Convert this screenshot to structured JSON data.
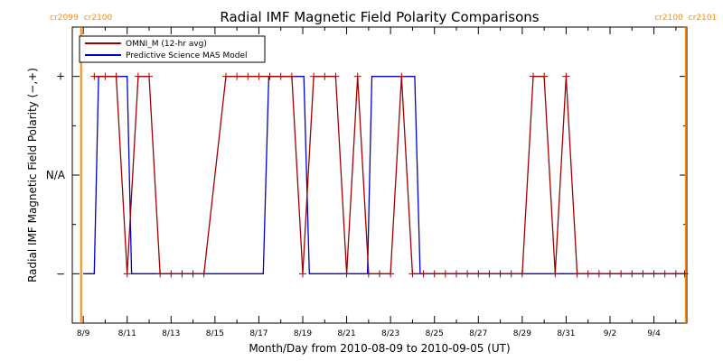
{
  "chart_data": {
    "type": "line",
    "title": "Radial IMF Magnetic Field Polarity Comparisons",
    "xlabel": "Month/Day from 2010-08-09 to 2010-09-05 (UT)",
    "ylabel": "Radial IMF Magnetic Field Polarity (−,+)",
    "xlim": [
      -0.5,
      27.5
    ],
    "ylim": [
      -1.5,
      1.5
    ],
    "x_ticks": [
      {
        "x": 0,
        "label": "8/9"
      },
      {
        "x": 2,
        "label": "8/11"
      },
      {
        "x": 4,
        "label": "8/13"
      },
      {
        "x": 6,
        "label": "8/15"
      },
      {
        "x": 8,
        "label": "8/17"
      },
      {
        "x": 10,
        "label": "8/19"
      },
      {
        "x": 12,
        "label": "8/21"
      },
      {
        "x": 14,
        "label": "8/23"
      },
      {
        "x": 16,
        "label": "8/25"
      },
      {
        "x": 18,
        "label": "8/27"
      },
      {
        "x": 20,
        "label": "8/29"
      },
      {
        "x": 22,
        "label": "8/31"
      },
      {
        "x": 24,
        "label": "9/2"
      },
      {
        "x": 26,
        "label": "9/4"
      }
    ],
    "y_ticks": [
      {
        "y": 1,
        "label": "+"
      },
      {
        "y": 0,
        "label": "N/A"
      },
      {
        "y": -1,
        "label": "−"
      }
    ],
    "carrington_markers": [
      {
        "x": -0.1,
        "label_left": "cr2099",
        "label_right": "cr2100",
        "color": "#ff8c00"
      },
      {
        "x": 27.45,
        "label_left": "cr2100",
        "label_right": "cr2101",
        "color": "#ff8c00"
      }
    ],
    "legend": {
      "placement": "top-left"
    },
    "series": [
      {
        "name": "OMNI_M (12-hr avg)",
        "color": "#a00000",
        "marker": "plus",
        "points": [
          [
            0.5,
            1
          ],
          [
            1.0,
            1
          ],
          [
            1.5,
            1
          ],
          [
            2.0,
            -1
          ],
          [
            2.5,
            1
          ],
          [
            3.0,
            1
          ],
          [
            3.5,
            -1
          ],
          [
            4.0,
            -1
          ],
          [
            4.5,
            -1
          ],
          [
            5.0,
            -1
          ],
          [
            5.5,
            -1
          ],
          [
            6.5,
            1
          ],
          [
            7.0,
            1
          ],
          [
            7.5,
            1
          ],
          [
            8.0,
            1
          ],
          [
            8.5,
            1
          ],
          [
            9.0,
            1
          ],
          [
            9.5,
            1
          ],
          [
            10.0,
            -1
          ],
          [
            10.5,
            1
          ],
          [
            11.0,
            1
          ],
          [
            11.5,
            1
          ],
          [
            12.0,
            -1
          ],
          [
            12.5,
            1
          ],
          [
            13.0,
            -1
          ],
          [
            13.5,
            -1
          ],
          [
            14.0,
            -1
          ],
          [
            14.5,
            1
          ],
          [
            15.0,
            -1
          ],
          [
            15.5,
            -1
          ],
          [
            16.0,
            -1
          ],
          [
            16.5,
            -1
          ],
          [
            17.0,
            -1
          ],
          [
            17.5,
            -1
          ],
          [
            18.0,
            -1
          ],
          [
            18.5,
            -1
          ],
          [
            19.0,
            -1
          ],
          [
            19.5,
            -1
          ],
          [
            20.0,
            -1
          ],
          [
            20.5,
            1
          ],
          [
            21.0,
            1
          ],
          [
            21.5,
            -1
          ],
          [
            22.0,
            1
          ],
          [
            22.5,
            -1
          ],
          [
            23.0,
            -1
          ],
          [
            23.5,
            -1
          ],
          [
            24.0,
            -1
          ],
          [
            24.5,
            -1
          ],
          [
            25.0,
            -1
          ],
          [
            25.5,
            -1
          ],
          [
            26.0,
            -1
          ],
          [
            26.5,
            -1
          ],
          [
            27.0,
            -1
          ],
          [
            27.4,
            -1
          ]
        ]
      },
      {
        "name": "Predictive Science MAS Model",
        "color": "#0000cc",
        "marker": "none",
        "points": [
          [
            0.0,
            -1
          ],
          [
            0.5,
            -1
          ],
          [
            0.7,
            1
          ],
          [
            2.0,
            1
          ],
          [
            2.2,
            -1
          ],
          [
            8.2,
            -1
          ],
          [
            8.45,
            1
          ],
          [
            10.05,
            1
          ],
          [
            10.3,
            -1
          ],
          [
            12.95,
            -1
          ],
          [
            13.15,
            1
          ],
          [
            15.1,
            1
          ],
          [
            15.35,
            -1
          ],
          [
            27.45,
            -1
          ]
        ]
      }
    ]
  }
}
